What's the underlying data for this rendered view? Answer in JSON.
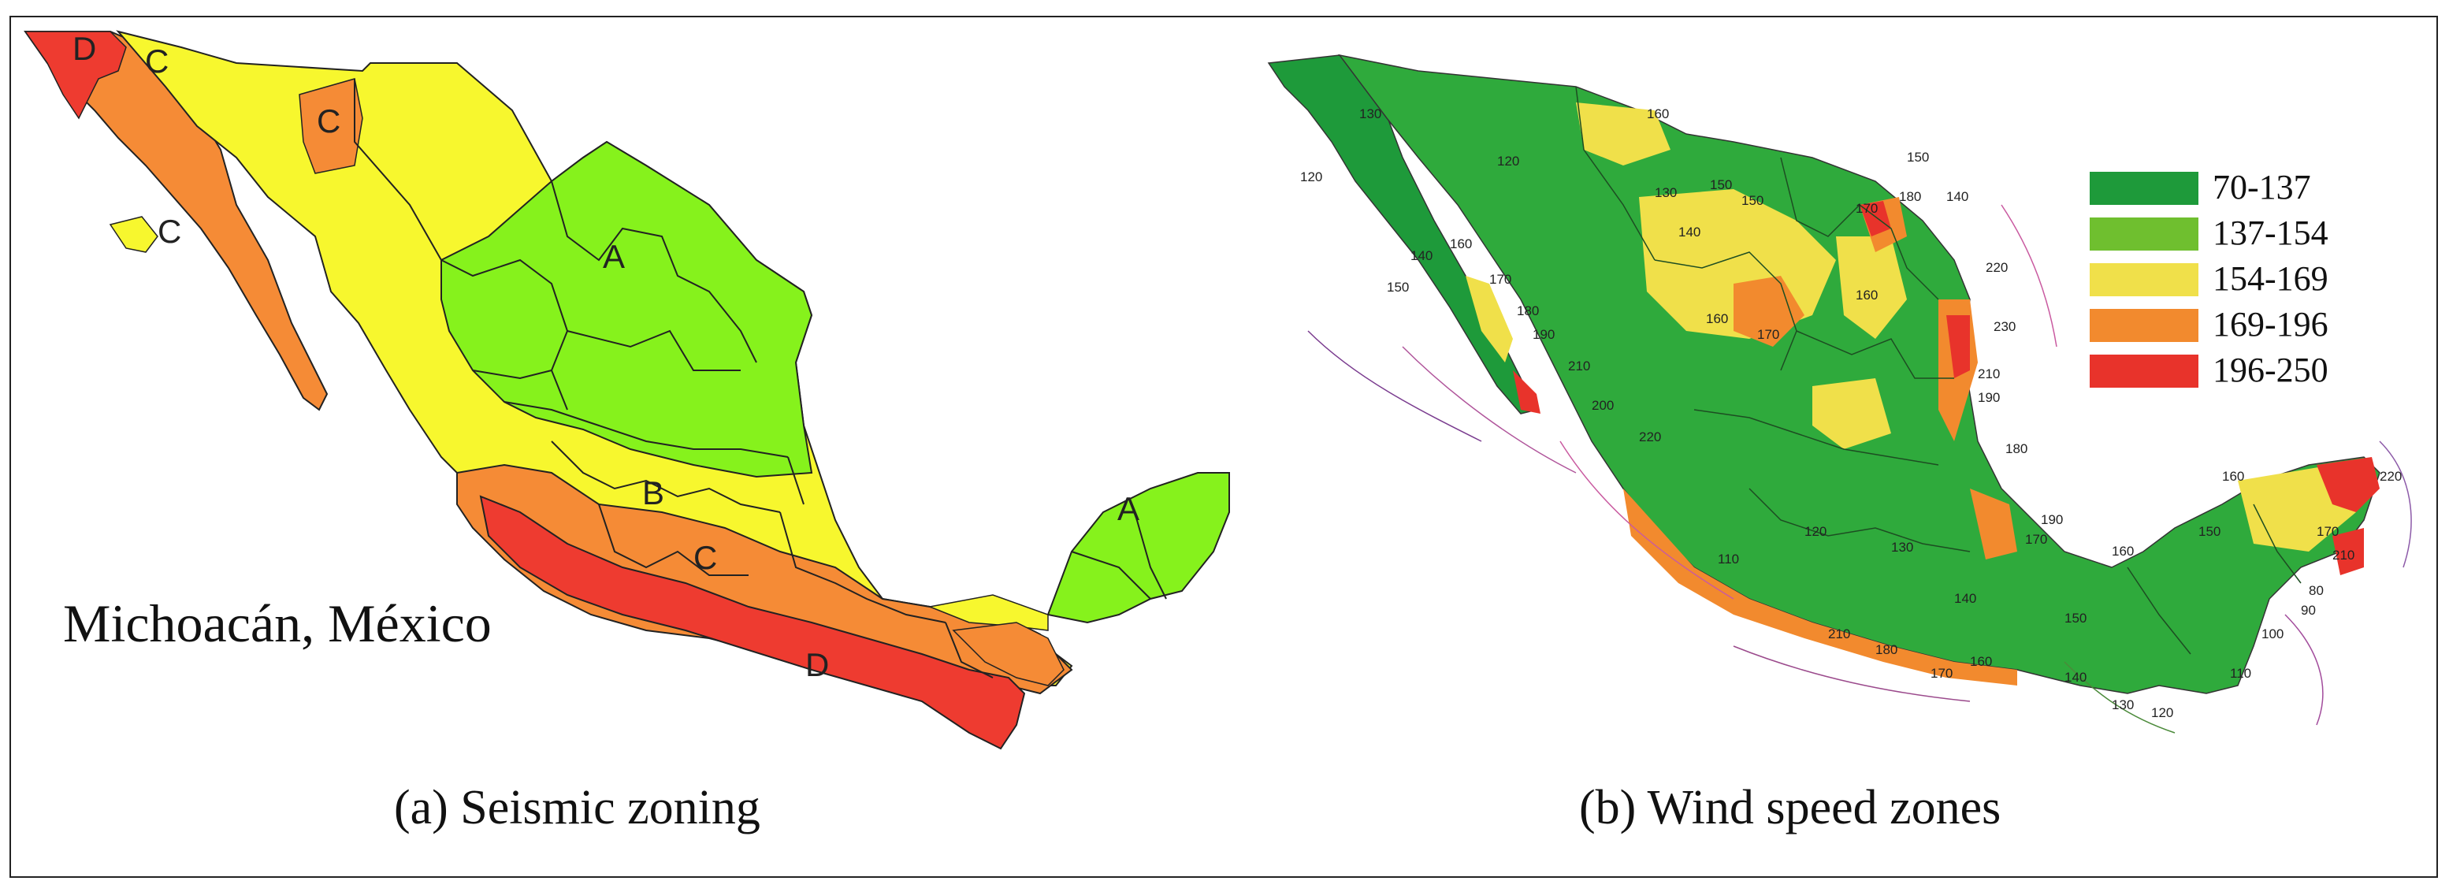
{
  "seismic_map": {
    "caption": "(a) Seismic zoning",
    "place_label": "Michoacán, México",
    "zone_labels": [
      "D",
      "C",
      "C",
      "C",
      "A",
      "A",
      "B",
      "C",
      "D"
    ],
    "colors": {
      "A": "#86f21c",
      "B": "#f7f72e",
      "C": "#f58b36",
      "D": "#ee3b30"
    }
  },
  "wind_map": {
    "caption": "(b) Wind speed zones",
    "legend": [
      {
        "label": "70-137",
        "color": "#1e9a3a"
      },
      {
        "label": "137-154",
        "color": "#6fbf2f"
      },
      {
        "label": "154-169",
        "color": "#f0e04a"
      },
      {
        "label": "169-196",
        "color": "#f28a2e"
      },
      {
        "label": "196-250",
        "color": "#e8332b"
      }
    ],
    "contour_labels": [
      "130",
      "120",
      "120",
      "140",
      "150",
      "160",
      "170",
      "180",
      "190",
      "210",
      "200",
      "220",
      "160",
      "150",
      "140",
      "130",
      "150",
      "160",
      "170",
      "170",
      "160",
      "150",
      "140",
      "180",
      "220",
      "230",
      "210",
      "190",
      "180",
      "190",
      "170",
      "160",
      "150",
      "110",
      "120",
      "130",
      "140",
      "150",
      "210",
      "180",
      "170",
      "160",
      "140",
      "130",
      "120",
      "110",
      "100",
      "90",
      "80",
      "170",
      "210",
      "220",
      "160"
    ]
  }
}
